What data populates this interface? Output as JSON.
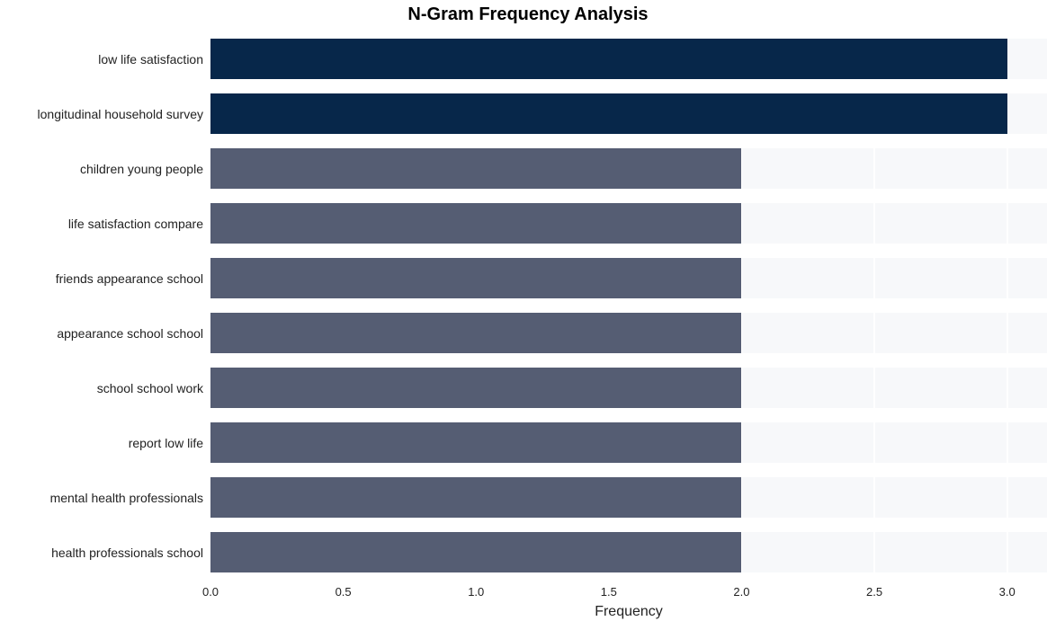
{
  "chart": {
    "type": "bar-horizontal",
    "title": "N-Gram Frequency Analysis",
    "title_fontsize": 20,
    "title_fontweight": "bold",
    "xlabel": "Frequency",
    "xlabel_fontsize": 16,
    "ylabel_fontsize": 14,
    "xtick_fontsize": 13,
    "xlim": [
      0.0,
      3.15
    ],
    "xticks": [
      0.0,
      0.5,
      1.0,
      1.5,
      2.0,
      2.5,
      3.0
    ],
    "xtick_labels": [
      "0.0",
      "0.5",
      "1.0",
      "1.5",
      "2.0",
      "2.5",
      "3.0"
    ],
    "plot_background": "#f7f8fa",
    "grid_color": "#ffffff",
    "grid_linewidth": 2,
    "bar_height_ratio": 0.75,
    "categories": [
      "low life satisfaction",
      "longitudinal household survey",
      "children young people",
      "life satisfaction compare",
      "friends appearance school",
      "appearance school school",
      "school school work",
      "report low life",
      "mental health professionals",
      "health professionals school"
    ],
    "values": [
      3.0,
      3.0,
      2.0,
      2.0,
      2.0,
      2.0,
      2.0,
      2.0,
      2.0,
      2.0
    ],
    "bar_colors": [
      "#07274a",
      "#07274a",
      "#555d73",
      "#555d73",
      "#555d73",
      "#555d73",
      "#555d73",
      "#555d73",
      "#555d73",
      "#555d73"
    ],
    "text_color": "#222222"
  }
}
